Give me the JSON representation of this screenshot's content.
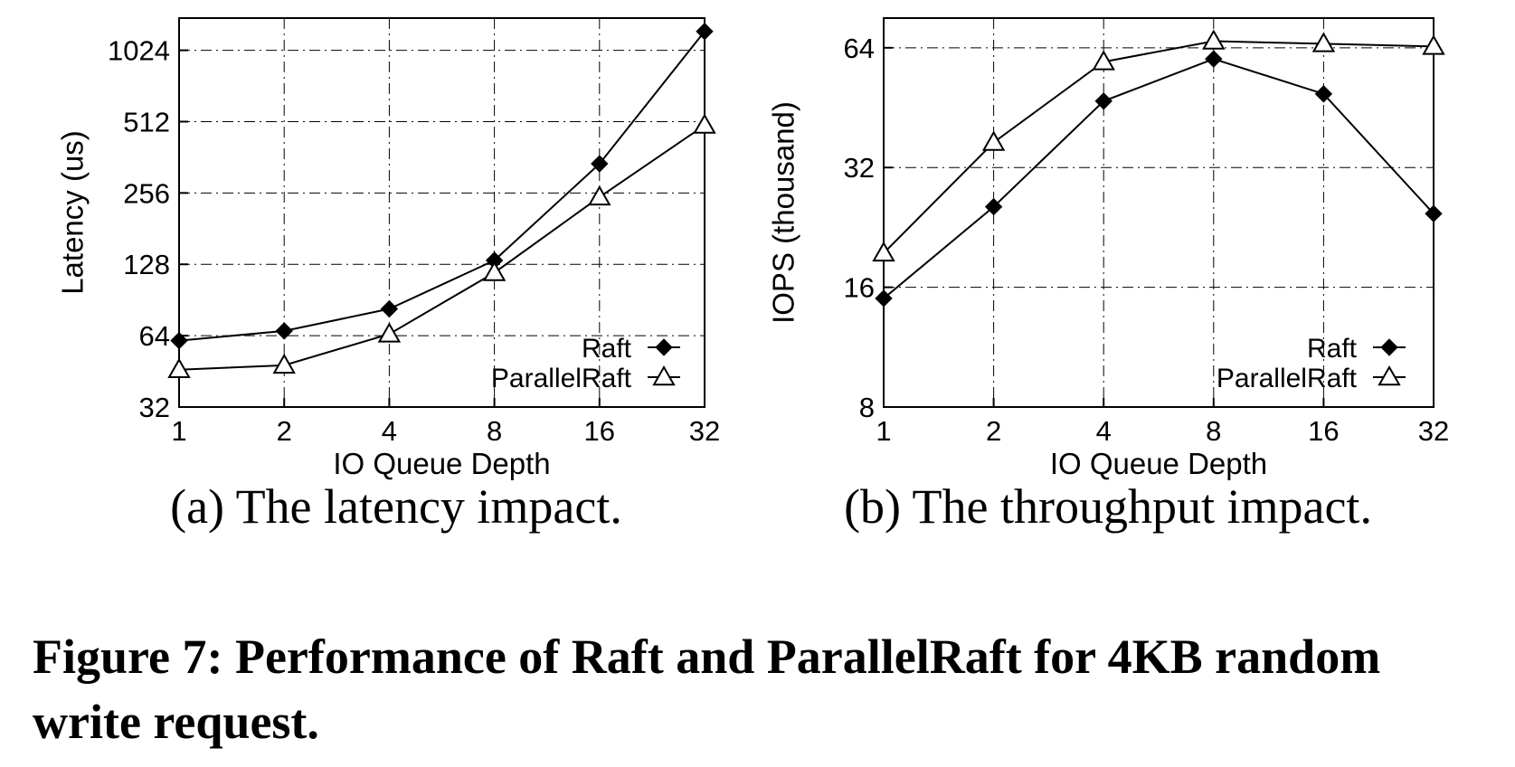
{
  "chart_data": [
    {
      "type": "line",
      "subcaption": "(a) The latency impact.",
      "xlabel": "IO Queue Depth",
      "ylabel": "Latency (us)",
      "categories": [
        "1",
        "2",
        "4",
        "8",
        "16",
        "32"
      ],
      "y_scale": "log2",
      "yticks": [
        "32",
        "64",
        "128",
        "256",
        "512",
        "1024"
      ],
      "ylim": [
        32,
        1400
      ],
      "grid": true,
      "legend_position": "bottom-right",
      "series": [
        {
          "name": "Raft",
          "marker": "diamond-filled",
          "values": [
            61,
            67,
            83,
            133,
            340,
            1230
          ]
        },
        {
          "name": "ParallelRaft",
          "marker": "triangle-open",
          "values": [
            46,
            48,
            65,
            118,
            246,
            494
          ]
        }
      ]
    },
    {
      "type": "line",
      "subcaption": "(b) The throughput impact.",
      "xlabel": "IO Queue Depth",
      "ylabel": "IOPS (thousand)",
      "categories": [
        "1",
        "2",
        "4",
        "8",
        "16",
        "32"
      ],
      "y_scale": "log2",
      "yticks": [
        "8",
        "16",
        "32",
        "64"
      ],
      "ylim": [
        8,
        76
      ],
      "grid": true,
      "legend_position": "bottom-right",
      "series": [
        {
          "name": "Raft",
          "marker": "diamond-filled",
          "values": [
            15,
            25.5,
            47,
            60,
            49,
            24.5
          ]
        },
        {
          "name": "ParallelRaft",
          "marker": "triangle-open",
          "values": [
            19.5,
            37,
            59,
            66.5,
            65.5,
            64.5
          ]
        }
      ]
    }
  ],
  "caption": "Figure 7: Performance of Raft and ParallelRaft for 4KB random write request."
}
